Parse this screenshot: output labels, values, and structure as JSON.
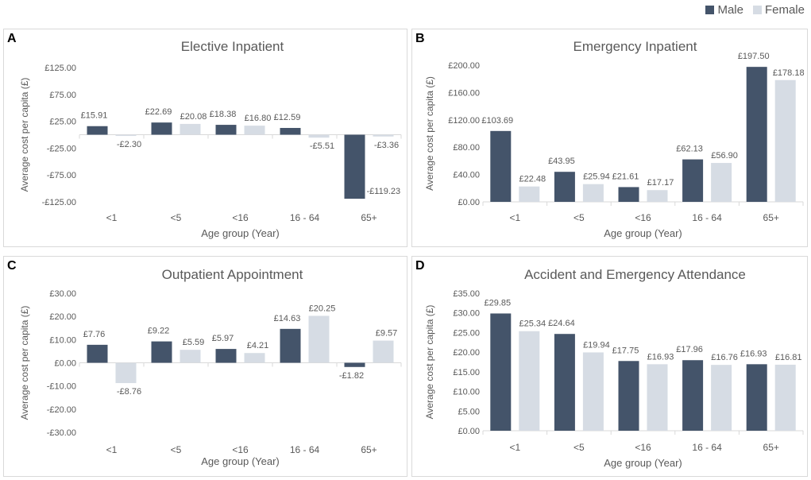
{
  "legend": {
    "male_label": "Male",
    "female_label": "Female"
  },
  "colors": {
    "male": "#44546a",
    "female": "#d6dce4",
    "axis": "#d9d9d9",
    "text": "#595959"
  },
  "chart_data": [
    {
      "panel": "A",
      "type": "bar",
      "title": "Elective Inpatient",
      "xlabel": "Age group (Year)",
      "ylabel": "Average cost per capita (£)",
      "categories": [
        "<1",
        "<5",
        "<16",
        "16 - 64",
        "65+"
      ],
      "ylim": [
        -125,
        125
      ],
      "yticks": [
        125,
        75,
        25,
        -25,
        -75,
        -125
      ],
      "ytick_labels": [
        "£125.00",
        "£75.00",
        "£25.00",
        "-£25.00",
        "-£75.00",
        "-£125.00"
      ],
      "category_axis_at": 0,
      "series": [
        {
          "name": "Male",
          "values": [
            15.91,
            22.69,
            18.38,
            12.59,
            -119.23
          ],
          "labels": [
            "£15.91",
            "£22.69",
            "£18.38",
            "£12.59",
            "-£119.23"
          ]
        },
        {
          "name": "Female",
          "values": [
            -2.3,
            20.08,
            16.8,
            -5.51,
            -3.36
          ],
          "labels": [
            "-£2.30",
            "£20.08",
            "£16.80",
            "-£5.51",
            "-£3.36"
          ]
        }
      ]
    },
    {
      "panel": "B",
      "type": "bar",
      "title": "Emergency Inpatient",
      "xlabel": "Age group (Year)",
      "ylabel": "Average cost per capita (£)",
      "categories": [
        "<1",
        "<5",
        "<16",
        "16 - 64",
        "65+"
      ],
      "ylim": [
        0,
        200
      ],
      "yticks": [
        200,
        160,
        120,
        80,
        40,
        0
      ],
      "ytick_labels": [
        "£200.00",
        "£160.00",
        "£120.00",
        "£80.00",
        "£40.00",
        "£0.00"
      ],
      "category_axis_at": 0,
      "series": [
        {
          "name": "Male",
          "values": [
            103.69,
            43.95,
            21.61,
            62.13,
            197.5
          ],
          "labels": [
            "£103.69",
            "£43.95",
            "£21.61",
            "£62.13",
            "£197.50"
          ]
        },
        {
          "name": "Female",
          "values": [
            22.48,
            25.94,
            17.17,
            56.9,
            178.18
          ],
          "labels": [
            "£22.48",
            "£25.94",
            "£17.17",
            "£56.90",
            "£178.18"
          ]
        }
      ]
    },
    {
      "panel": "C",
      "type": "bar",
      "title": "Outpatient Appointment",
      "xlabel": "Age group (Year)",
      "ylabel": "Average cost per capita (£)",
      "categories": [
        "<1",
        "<5",
        "<16",
        "16 - 64",
        "65+"
      ],
      "ylim": [
        -30,
        30
      ],
      "yticks": [
        30,
        20,
        10,
        0,
        -10,
        -20,
        -30
      ],
      "ytick_labels": [
        "£30.00",
        "£20.00",
        "£10.00",
        "£0.00",
        "-£10.00",
        "-£20.00",
        "-£30.00"
      ],
      "category_axis_at": 0,
      "series": [
        {
          "name": "Male",
          "values": [
            7.76,
            9.22,
            5.97,
            14.63,
            -1.82
          ],
          "labels": [
            "£7.76",
            "£9.22",
            "£5.97",
            "£14.63",
            "-£1.82"
          ]
        },
        {
          "name": "Female",
          "values": [
            -8.76,
            5.59,
            4.21,
            20.25,
            9.57
          ],
          "labels": [
            "-£8.76",
            "£5.59",
            "£4.21",
            "£20.25",
            "£9.57"
          ]
        }
      ]
    },
    {
      "panel": "D",
      "type": "bar",
      "title": "Accident and Emergency Attendance",
      "xlabel": "Age group (Year)",
      "ylabel": "Average cost per capita (£)",
      "categories": [
        "<1",
        "<5",
        "<16",
        "16 - 64",
        "65+"
      ],
      "ylim": [
        0,
        35
      ],
      "yticks": [
        35,
        30,
        25,
        20,
        15,
        10,
        5,
        0
      ],
      "ytick_labels": [
        "£35.00",
        "£30.00",
        "£25.00",
        "£20.00",
        "£15.00",
        "£10.00",
        "£5.00",
        "£0.00"
      ],
      "category_axis_at": 0,
      "series": [
        {
          "name": "Male",
          "values": [
            29.85,
            24.64,
            17.75,
            17.96,
            16.93
          ],
          "labels": [
            "£29.85",
            "£24.64",
            "£17.75",
            "£17.96",
            "£16.93"
          ]
        },
        {
          "name": "Female",
          "values": [
            25.34,
            19.94,
            16.93,
            16.76,
            16.81
          ],
          "labels": [
            "£25.34",
            "£19.94",
            "£16.93",
            "£16.76",
            "£16.81"
          ]
        }
      ]
    }
  ]
}
